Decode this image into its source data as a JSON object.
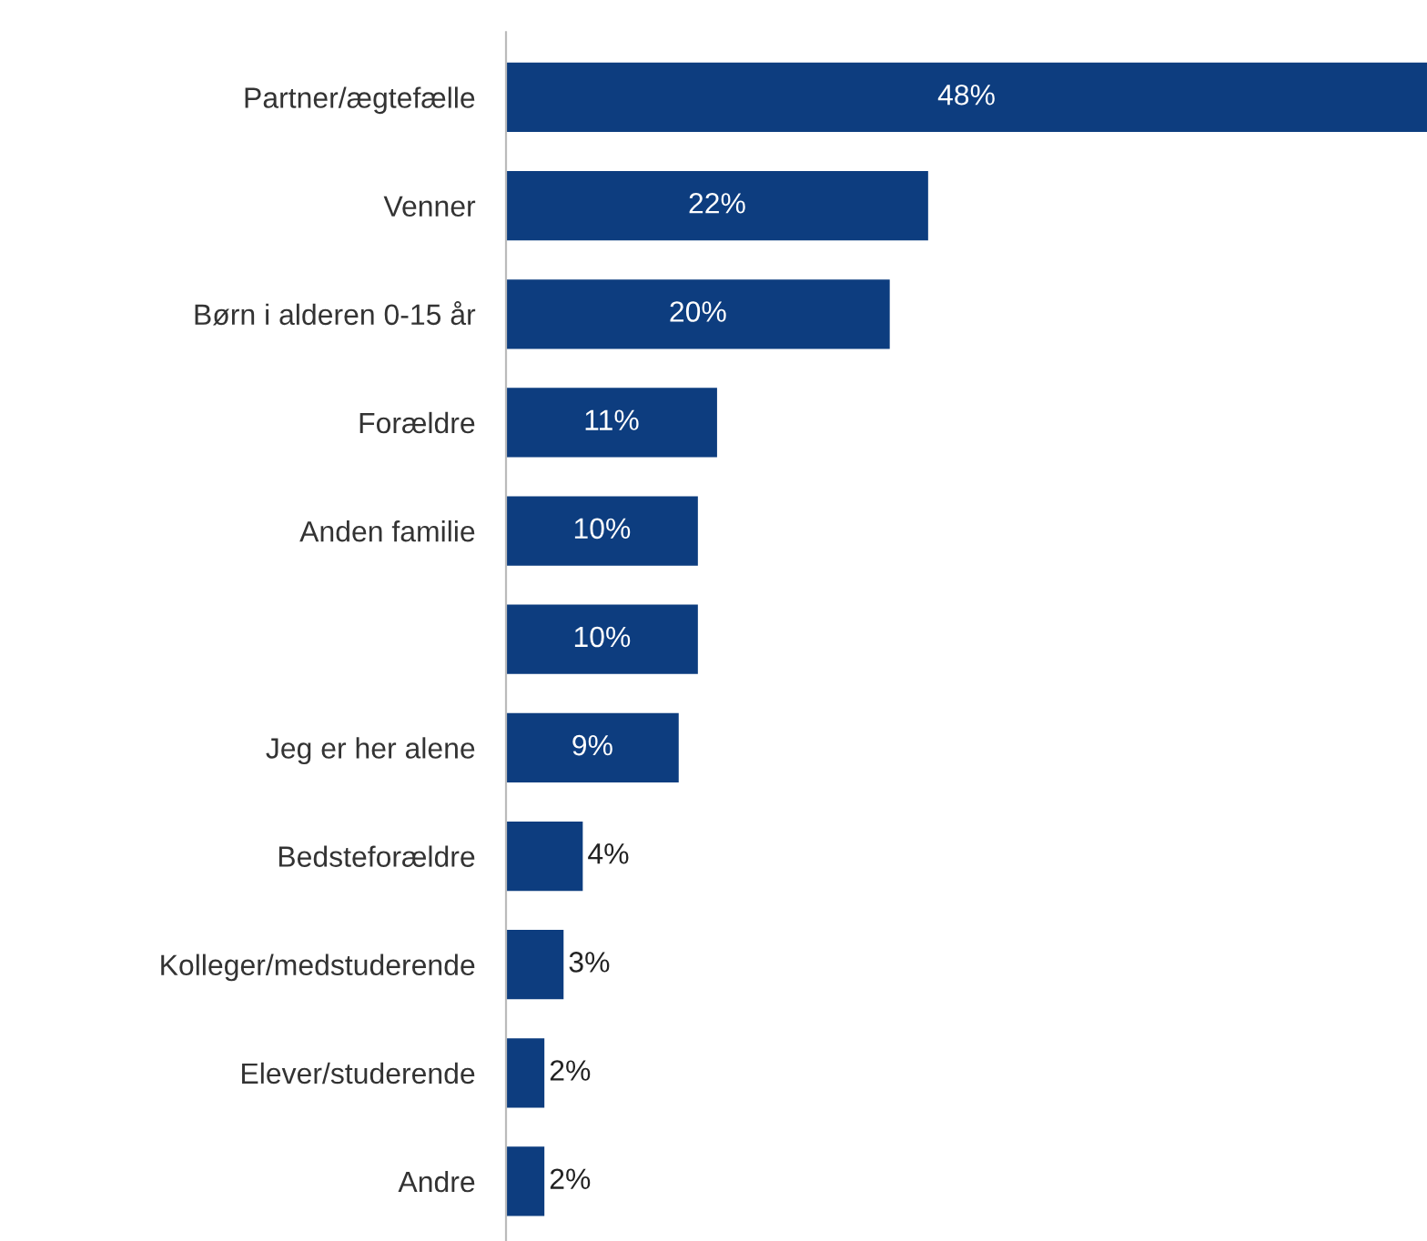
{
  "chart_data": {
    "type": "bar",
    "orientation": "horizontal",
    "categories": [
      "Partner/ægtefælle",
      "Venner",
      "Børn i alderen 0-15 år",
      "Forældre",
      "Anden familie",
      null,
      "Jeg er her alene",
      "Bedsteforældre",
      "Kolleger/medstuderende",
      "Elever/studerende",
      "Andre"
    ],
    "values": [
      48,
      22,
      20,
      11,
      10,
      10,
      9,
      4,
      3,
      2,
      2
    ],
    "value_labels": [
      "48%",
      "22%",
      "20%",
      "11%",
      "10%",
      "10%",
      "9%",
      "4%",
      "3%",
      "2%",
      "2%"
    ],
    "color": "#0d3d7f",
    "grid": false,
    "legend": false
  }
}
